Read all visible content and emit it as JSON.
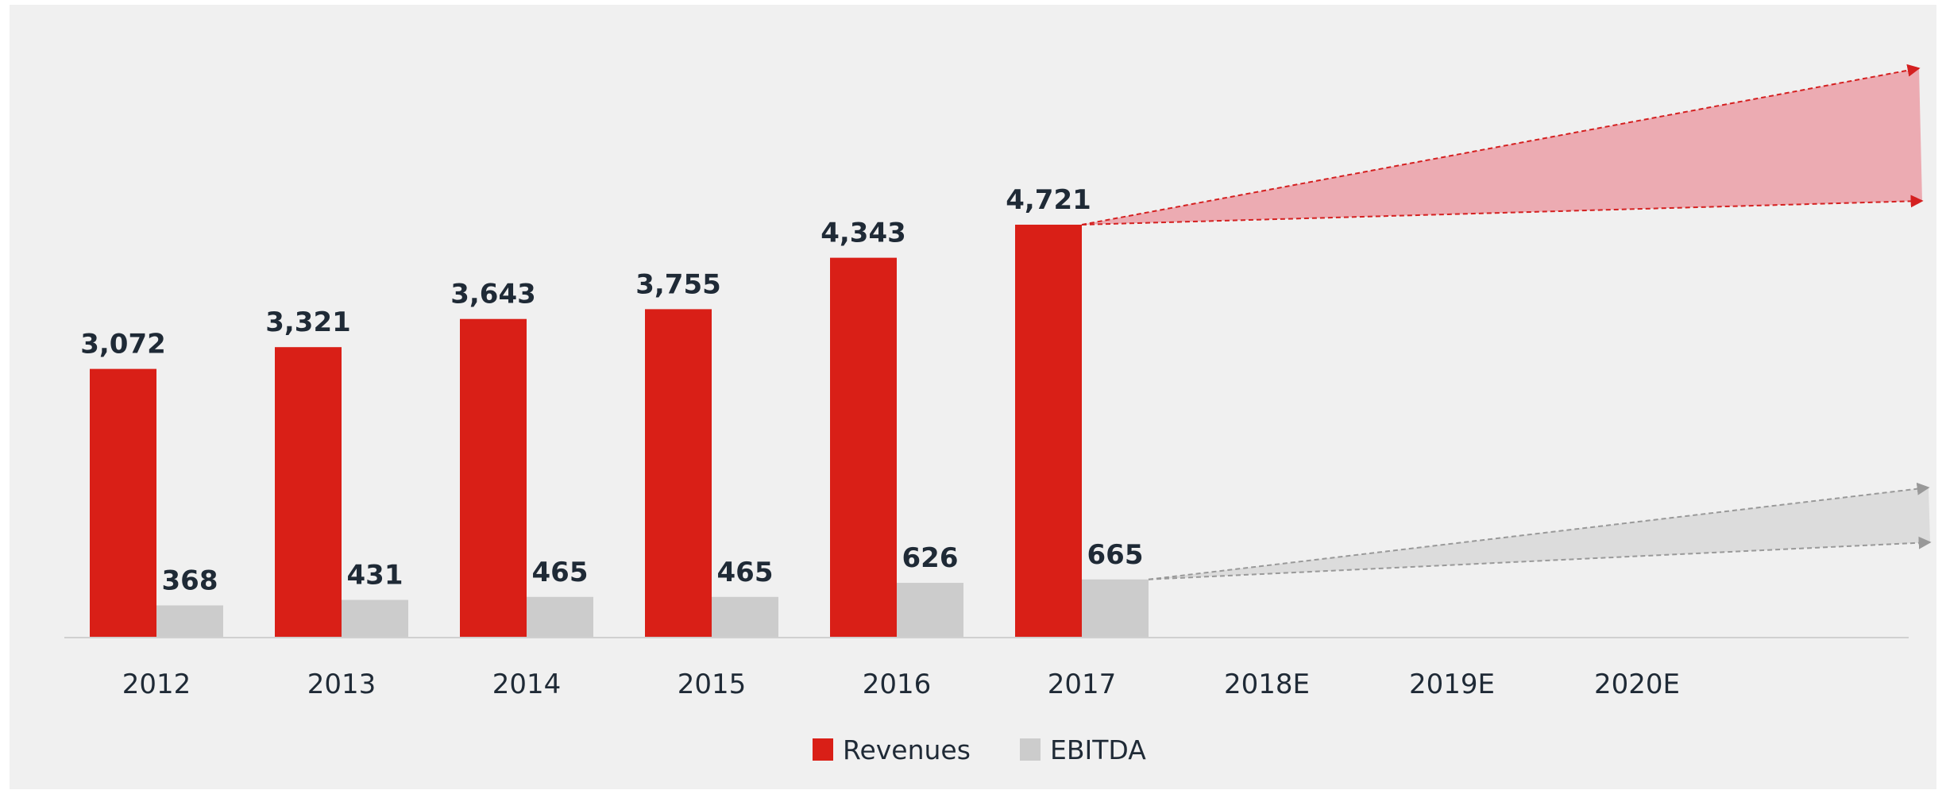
{
  "chart_data": {
    "type": "bar",
    "categories": [
      "2012",
      "2013",
      "2014",
      "2015",
      "2016",
      "2017",
      "2018E",
      "2019E",
      "2020E"
    ],
    "series": [
      {
        "name": "Revenues",
        "color": "#d91f17",
        "values": [
          3072,
          3321,
          3643,
          3755,
          4343,
          4721,
          null,
          null,
          null
        ],
        "value_labels": [
          "3,072",
          "3,321",
          "3,643",
          "3,755",
          "4,343",
          "4,721",
          null,
          null,
          null
        ]
      },
      {
        "name": "EBITDA",
        "color": "#cccccc",
        "values": [
          368,
          431,
          465,
          465,
          626,
          665,
          null,
          null,
          null
        ]
      }
    ],
    "ylim": [
      0,
      6700
    ],
    "legend": "bottom"
  }
}
